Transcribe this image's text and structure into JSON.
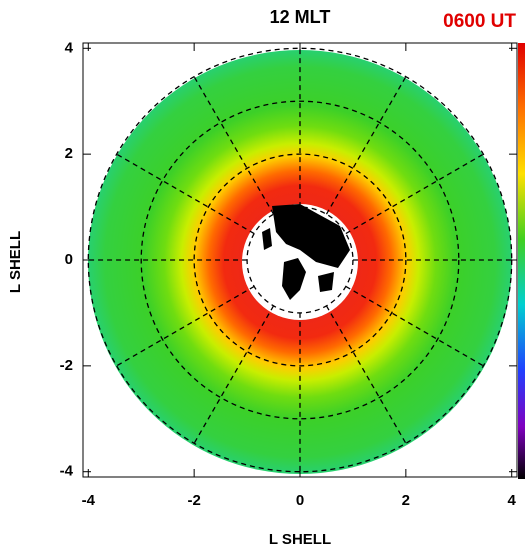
{
  "chart_data": {
    "type": "polar-map",
    "title": "12 MLT",
    "annotation": "0600 UT",
    "xlabel": "L SHELL",
    "ylabel": "L SHELL",
    "xlim": [
      -4.1,
      4.1
    ],
    "ylim": [
      -4.1,
      4.1
    ],
    "xticks": [
      -4,
      -2,
      0,
      2,
      4
    ],
    "yticks": [
      -4,
      -2,
      0,
      2,
      4
    ],
    "grid_rings": [
      1,
      2,
      3,
      4
    ]
  }
}
